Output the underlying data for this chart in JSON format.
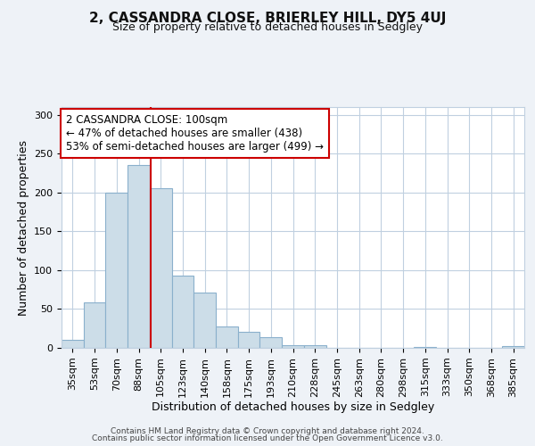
{
  "title": "2, CASSANDRA CLOSE, BRIERLEY HILL, DY5 4UJ",
  "subtitle": "Size of property relative to detached houses in Sedgley",
  "xlabel": "Distribution of detached houses by size in Sedgley",
  "ylabel": "Number of detached properties",
  "footer_line1": "Contains HM Land Registry data © Crown copyright and database right 2024.",
  "footer_line2": "Contains public sector information licensed under the Open Government Licence v3.0.",
  "annotation_line1": "2 CASSANDRA CLOSE: 100sqm",
  "annotation_line2": "← 47% of detached houses are smaller (438)",
  "annotation_line3": "53% of semi-detached houses are larger (499) →",
  "bar_labels": [
    "35sqm",
    "53sqm",
    "70sqm",
    "88sqm",
    "105sqm",
    "123sqm",
    "140sqm",
    "158sqm",
    "175sqm",
    "193sqm",
    "210sqm",
    "228sqm",
    "245sqm",
    "263sqm",
    "280sqm",
    "298sqm",
    "315sqm",
    "333sqm",
    "350sqm",
    "368sqm",
    "385sqm"
  ],
  "bar_values": [
    10,
    59,
    200,
    235,
    205,
    93,
    71,
    27,
    21,
    14,
    4,
    4,
    0,
    0,
    0,
    0,
    1,
    0,
    0,
    0,
    2
  ],
  "bar_color": "#ccdde8",
  "bar_edgecolor": "#8ab0cc",
  "vline_color": "#cc0000",
  "vline_pos": 3.55,
  "ylim": [
    0,
    310
  ],
  "yticks": [
    0,
    50,
    100,
    150,
    200,
    250,
    300
  ],
  "bg_color": "#eef2f7",
  "plot_bg_color": "#ffffff",
  "grid_color": "#c0d0e0",
  "annotation_box_edgecolor": "#cc0000",
  "annotation_box_facecolor": "#ffffff",
  "title_fontsize": 11,
  "subtitle_fontsize": 9,
  "ylabel_fontsize": 9,
  "xlabel_fontsize": 9,
  "tick_fontsize": 8,
  "footer_fontsize": 6.5,
  "annotation_fontsize": 8.5
}
